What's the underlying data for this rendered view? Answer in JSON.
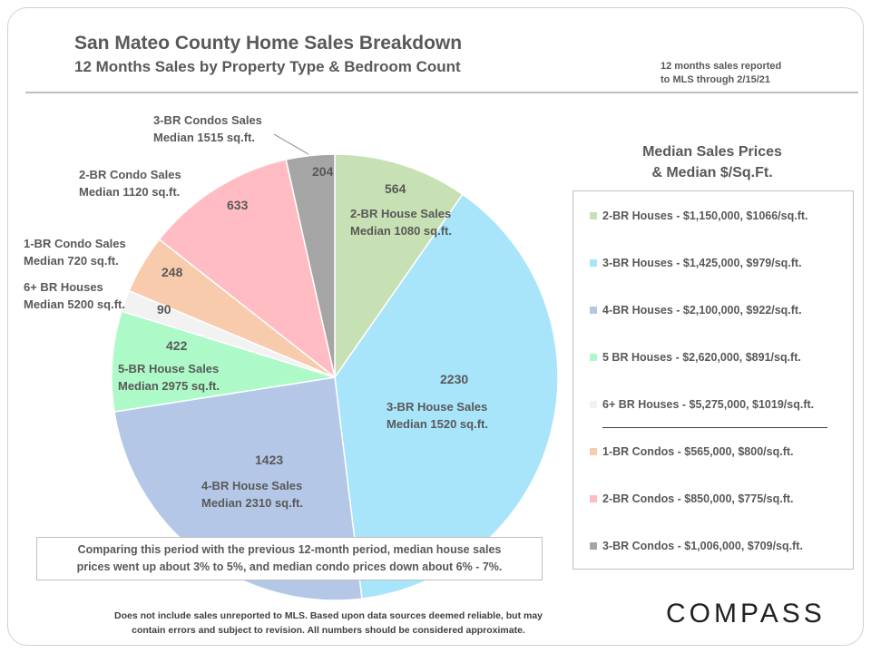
{
  "header": {
    "title": "San Mateo County Home Sales Breakdown",
    "subtitle": "12 Months Sales by Property Type & Bedroom Count",
    "report_note_line1": "12 months sales reported",
    "report_note_line2": "to MLS through 2/15/21"
  },
  "chart_data": {
    "type": "pie",
    "title": "San Mateo County Home Sales Breakdown",
    "subtitle": "12 Months Sales by Property Type & Bedroom Count",
    "slices": [
      {
        "name": "2-BR House Sales",
        "value": 564,
        "median": "Median 1080 sq.ft.",
        "color": "#c7e0b4"
      },
      {
        "name": "3-BR House Sales",
        "value": 2230,
        "median": "Median 1520 sq.ft.",
        "color": "#a8e4fa"
      },
      {
        "name": "4-BR House Sales",
        "value": 1423,
        "median": "Median 2310 sq.ft.",
        "color": "#b4c7e7"
      },
      {
        "name": "5-BR House Sales",
        "value": 422,
        "median": "Median 2975 sq.ft.",
        "color": "#adfac8"
      },
      {
        "name": "6+ BR Houses",
        "value": 90,
        "median": "Median 5200 sq.ft.",
        "color": "#f2f2f2"
      },
      {
        "name": "1-BR Condo Sales",
        "value": 248,
        "median": "Median 720 sq.ft.",
        "color": "#f8cbad"
      },
      {
        "name": "2-BR Condo Sales",
        "value": 633,
        "median": "Median 1120 sq.ft.",
        "color": "#ffbdc3"
      },
      {
        "name": "3-BR Condos Sales",
        "value": 204,
        "median": "Median 1515 sq.ft.",
        "color": "#a5a5a5"
      }
    ]
  },
  "legend": {
    "title_line1": "Median Sales Prices",
    "title_line2": "& Median $/Sq.Ft.",
    "items": [
      {
        "label": "2-BR Houses - $1,150,000, $1066/sq.ft.",
        "color": "#c7e0b4"
      },
      {
        "label": "3-BR Houses - $1,425,000, $979/sq.ft.",
        "color": "#a8e4fa"
      },
      {
        "label": "4-BR Houses - $2,100,000, $922/sq.ft.",
        "color": "#b4c7e7"
      },
      {
        "label": "5 BR Houses - $2,620,000, $891/sq.ft.",
        "color": "#adfac8"
      },
      {
        "label": "6+ BR Houses - $5,275,000, $1019/sq.ft.",
        "color": "#f2f2f2"
      },
      {
        "label": "1-BR Condos - $565,000, $800/sq.ft.",
        "color": "#f8cbad"
      },
      {
        "label": "2-BR Condos - $850,000, $775/sq.ft.",
        "color": "#ffbdc3"
      },
      {
        "label": "3-BR Condos - $1,006,000, $709/sq.ft.",
        "color": "#a5a5a5"
      }
    ]
  },
  "comparison": {
    "line1": "Comparing this period with the previous 12-month period, median house sales",
    "line2": "prices went up about 3% to 5%, and median condo prices down about 6% - 7%."
  },
  "footer": {
    "disclaimer_line1": "Does not include sales unreported to MLS.  Based upon data sources deemed reliable, but may",
    "disclaimer_line2": "contain errors and subject to revision. All numbers should be considered approximate.",
    "logo": "COMPASS"
  }
}
